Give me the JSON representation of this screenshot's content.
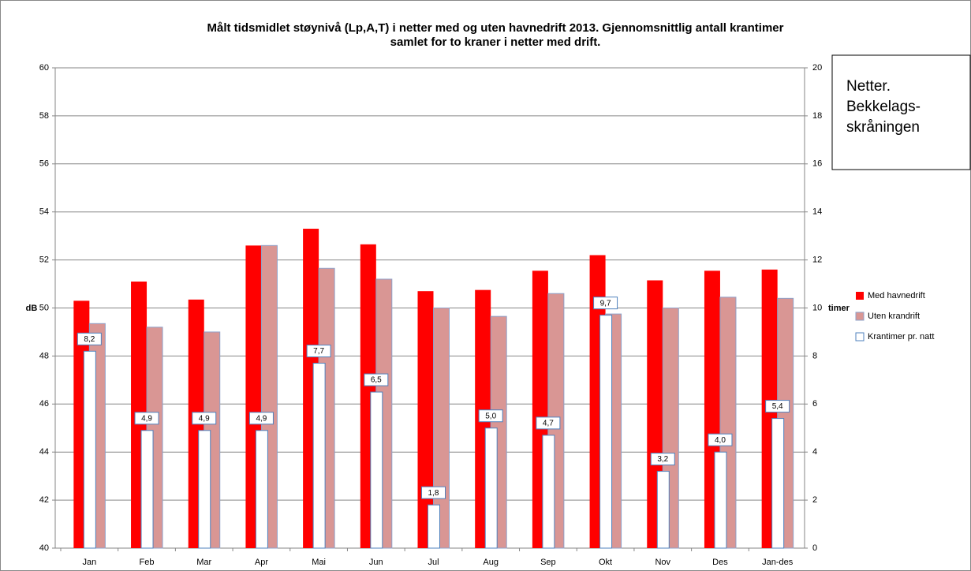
{
  "chart_data": {
    "type": "bar",
    "title": [
      "Målt tidsmidlet støynivå (Lp,A,T) i netter med og uten havnedrift 2013. Gjennomsnittlig antall krantimer",
      "samlet for to kraner i netter med drift."
    ],
    "y_label": "dB",
    "y2_label": "timer",
    "annotation": [
      "Netter.",
      "Bekkelags-",
      "skråningen"
    ],
    "categories": [
      "Jan",
      "Feb",
      "Mar",
      "Apr",
      "Mai",
      "Jun",
      "Jul",
      "Aug",
      "Sep",
      "Okt",
      "Nov",
      "Des",
      "Jan-des"
    ],
    "series": [
      {
        "name": "Med havnedrift",
        "color": "#ff0000",
        "values": [
          50.3,
          51.1,
          50.35,
          52.6,
          53.3,
          52.65,
          50.7,
          50.75,
          51.55,
          52.2,
          51.15,
          51.55,
          51.6
        ]
      },
      {
        "name": "Uten krandrift",
        "color": "#d99694",
        "values": [
          49.35,
          49.2,
          49.0,
          52.6,
          51.65,
          51.2,
          50.0,
          49.65,
          50.6,
          49.75,
          50.0,
          50.45,
          50.4
        ]
      },
      {
        "name": "Krantimer pr. natt",
        "color": "#ffffff",
        "axis": "y2",
        "values": [
          8.2,
          4.9,
          4.9,
          4.9,
          7.7,
          6.5,
          1.8,
          5.0,
          4.7,
          9.7,
          3.2,
          4.0,
          5.4
        ],
        "value_labels": [
          "8,2",
          "4,9",
          "4,9",
          "4,9",
          "7,7",
          "6,5",
          "1,8",
          "5,0",
          "4,7",
          "9,7",
          "3,2",
          "4,0",
          "5,4"
        ]
      }
    ],
    "ylim": [
      40,
      60
    ],
    "yticks": [
      40,
      42,
      44,
      46,
      48,
      50,
      52,
      54,
      56,
      58,
      60
    ],
    "y2lim": [
      0,
      20
    ],
    "y2ticks": [
      0,
      2,
      4,
      6,
      8,
      10,
      12,
      14,
      16,
      18,
      20
    ],
    "grid": true
  }
}
